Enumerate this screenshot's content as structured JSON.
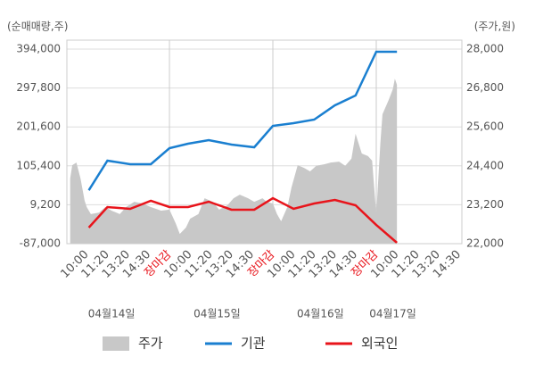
{
  "chart_data": {
    "type": "line",
    "y_label": "(순매매량,주)",
    "y2_label": "(주가,원)",
    "categories": [
      "10:00",
      "11:20",
      "13:20",
      "14:30",
      "장마감",
      "10:00",
      "11:20",
      "13:20",
      "14:30",
      "장마감",
      "10:00",
      "11:20",
      "13:20",
      "14:30",
      "장마감",
      "10:00",
      "11:20",
      "13:20",
      "14:30"
    ],
    "highlight": [
      4,
      9,
      14
    ],
    "highlight_color": "#e8141b",
    "dates": [
      {
        "label": "04월14일",
        "x": 1.2
      },
      {
        "label": "04월15일",
        "x": 6.3
      },
      {
        "label": "04월16일",
        "x": 11.3
      },
      {
        "label": "04월17일",
        "x": 14.8
      }
    ],
    "xlim": [
      -0.96,
      18.14
    ],
    "x": [
      0.1,
      1,
      2.1,
      3.1,
      4,
      4.9,
      5.9,
      7,
      8.1,
      9,
      10,
      11,
      12,
      13,
      14,
      15
    ],
    "ylim": [
      -87000,
      394000
    ],
    "yticks": [
      {
        "value": -87000,
        "label": "-87,000"
      },
      {
        "value": 9200,
        "label": "9,200"
      },
      {
        "value": 105400,
        "label": "105,400"
      },
      {
        "value": 201600,
        "label": "201,600"
      },
      {
        "value": 297800,
        "label": "297,800"
      },
      {
        "value": 394000,
        "label": "394,000"
      }
    ],
    "y2lim": [
      22000,
      28000
    ],
    "y2ticks": [
      {
        "value": 22000,
        "label": "22,000"
      },
      {
        "value": 23200,
        "label": "23,200"
      },
      {
        "value": 24400,
        "label": "24,400"
      },
      {
        "value": 25600,
        "label": "25,600"
      },
      {
        "value": 26800,
        "label": "26,800"
      },
      {
        "value": 28000,
        "label": "28,000"
      }
    ],
    "grid": true,
    "series": [
      {
        "name": "주가",
        "color": "#c8c8c8",
        "axis": "y2",
        "type": "area",
        "x": [
          -0.8,
          -0.7,
          -0.5,
          -0.3,
          -0.1,
          0,
          0.2,
          0.6,
          0.9,
          1.2,
          1.6,
          1.9,
          2.3,
          2.7,
          3.1,
          3.6,
          4,
          4.3,
          4.5,
          4.8,
          5,
          5.4,
          5.7,
          6.1,
          6.4,
          6.8,
          7.1,
          7.4,
          7.8,
          8.1,
          8.5,
          8.7,
          9,
          9.2,
          9.4,
          9.7,
          9.9,
          10.2,
          10.5,
          10.8,
          11.1,
          11.5,
          11.8,
          12.2,
          12.5,
          12.8,
          13,
          13.3,
          13.6,
          13.8,
          14,
          14.2,
          14.3,
          14.6,
          14.8,
          14.9,
          15
        ],
        "values": [
          24010,
          24420,
          24500,
          24010,
          23320,
          23130,
          22910,
          22960,
          23130,
          23020,
          22910,
          23130,
          23290,
          23240,
          23130,
          23020,
          23050,
          22630,
          22300,
          22500,
          22770,
          22910,
          23400,
          23290,
          23050,
          23180,
          23400,
          23510,
          23400,
          23290,
          23400,
          23290,
          23240,
          22910,
          22690,
          23130,
          23730,
          24420,
          24340,
          24230,
          24400,
          24450,
          24500,
          24530,
          24400,
          24620,
          25390,
          24780,
          24700,
          24560,
          22910,
          25110,
          25990,
          26430,
          26760,
          27090,
          26900
        ]
      },
      {
        "name": "기관",
        "color": "#1a7fd0",
        "values": [
          45000,
          118200,
          109400,
          109400,
          149100,
          160100,
          169000,
          158000,
          151300,
          204200,
          210900,
          219700,
          255000,
          279300,
          387400,
          387400
        ]
      },
      {
        "name": "외국인",
        "color": "#e8141b",
        "values": [
          -47300,
          3500,
          -900,
          19000,
          3500,
          3500,
          16700,
          -3100,
          -3100,
          25500,
          -900,
          12300,
          21100,
          7900,
          -40700,
          -84800
        ]
      }
    ]
  }
}
